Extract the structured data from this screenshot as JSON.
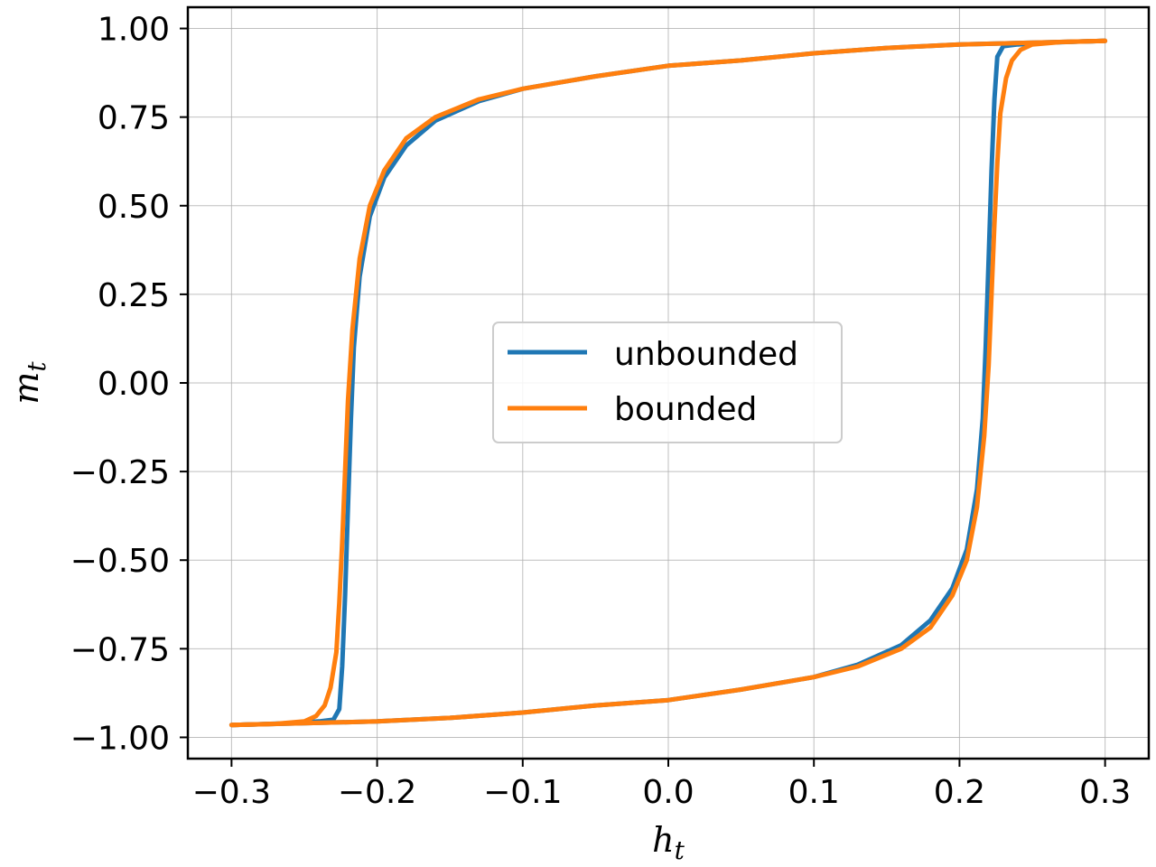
{
  "chart_data": {
    "type": "line",
    "title": "",
    "xlabel": "h",
    "xlabel_sub": "t",
    "ylabel": "m",
    "ylabel_sub": "t",
    "xlim": [
      -0.33,
      0.33
    ],
    "ylim": [
      -1.06,
      1.06
    ],
    "xticks": [
      -0.3,
      -0.2,
      -0.1,
      0.0,
      0.1,
      0.2,
      0.3
    ],
    "xtick_labels": [
      "−0.3",
      "−0.2",
      "−0.1",
      "0.0",
      "0.1",
      "0.2",
      "0.3"
    ],
    "yticks": [
      1.0,
      0.75,
      0.5,
      0.25,
      0.0,
      -0.25,
      -0.5,
      -0.75,
      -1.0
    ],
    "ytick_labels": [
      "1.00",
      "0.75",
      "0.50",
      "0.25",
      "0.00",
      "−0.25",
      "−0.50",
      "−0.75",
      "−1.00"
    ],
    "grid": true,
    "legend_position": "center",
    "series": [
      {
        "name": "unbounded",
        "color": "#1f77b4",
        "upper_branch": {
          "x": [
            0.3,
            0.25,
            0.2,
            0.15,
            0.1,
            0.05,
            0.0,
            -0.05,
            -0.1,
            -0.13,
            -0.16,
            -0.18,
            -0.195,
            -0.205,
            -0.212,
            -0.216,
            -0.218,
            -0.22,
            -0.222,
            -0.224,
            -0.226,
            -0.23,
            -0.24,
            -0.26,
            -0.28,
            -0.3
          ],
          "y": [
            0.965,
            0.96,
            0.955,
            0.945,
            0.93,
            0.91,
            0.895,
            0.865,
            0.83,
            0.795,
            0.74,
            0.67,
            0.58,
            0.47,
            0.3,
            0.1,
            -0.1,
            -0.35,
            -0.6,
            -0.8,
            -0.92,
            -0.95,
            -0.955,
            -0.96,
            -0.963,
            -0.965
          ]
        },
        "lower_branch": {
          "x": [
            -0.3,
            -0.25,
            -0.2,
            -0.15,
            -0.1,
            -0.05,
            0.0,
            0.05,
            0.1,
            0.13,
            0.16,
            0.18,
            0.195,
            0.205,
            0.212,
            0.216,
            0.218,
            0.22,
            0.222,
            0.224,
            0.226,
            0.23,
            0.24,
            0.26,
            0.28,
            0.3
          ],
          "y": [
            -0.965,
            -0.96,
            -0.955,
            -0.945,
            -0.93,
            -0.91,
            -0.895,
            -0.865,
            -0.83,
            -0.795,
            -0.74,
            -0.67,
            -0.58,
            -0.47,
            -0.3,
            -0.1,
            0.1,
            0.35,
            0.6,
            0.8,
            0.92,
            0.95,
            0.955,
            0.96,
            0.963,
            0.965
          ]
        }
      },
      {
        "name": "bounded",
        "color": "#ff7f0e",
        "upper_branch": {
          "x": [
            0.3,
            0.25,
            0.2,
            0.15,
            0.1,
            0.05,
            0.0,
            -0.05,
            -0.1,
            -0.13,
            -0.16,
            -0.18,
            -0.195,
            -0.205,
            -0.212,
            -0.217,
            -0.22,
            -0.222,
            -0.224,
            -0.226,
            -0.228,
            -0.232,
            -0.236,
            -0.242,
            -0.25,
            -0.27,
            -0.3
          ],
          "y": [
            0.965,
            0.96,
            0.955,
            0.945,
            0.93,
            0.91,
            0.895,
            0.865,
            0.83,
            0.8,
            0.75,
            0.69,
            0.6,
            0.5,
            0.35,
            0.15,
            -0.05,
            -0.25,
            -0.45,
            -0.62,
            -0.76,
            -0.86,
            -0.91,
            -0.94,
            -0.955,
            -0.962,
            -0.965
          ]
        },
        "lower_branch": {
          "x": [
            -0.3,
            -0.25,
            -0.2,
            -0.15,
            -0.1,
            -0.05,
            0.0,
            0.05,
            0.1,
            0.13,
            0.16,
            0.18,
            0.195,
            0.205,
            0.212,
            0.217,
            0.22,
            0.222,
            0.224,
            0.226,
            0.228,
            0.232,
            0.236,
            0.242,
            0.25,
            0.27,
            0.3
          ],
          "y": [
            -0.965,
            -0.96,
            -0.955,
            -0.945,
            -0.93,
            -0.91,
            -0.895,
            -0.865,
            -0.83,
            -0.8,
            -0.75,
            -0.69,
            -0.6,
            -0.5,
            -0.35,
            -0.15,
            0.05,
            0.25,
            0.45,
            0.62,
            0.76,
            0.86,
            0.91,
            0.94,
            0.955,
            0.962,
            0.965
          ]
        }
      }
    ]
  }
}
